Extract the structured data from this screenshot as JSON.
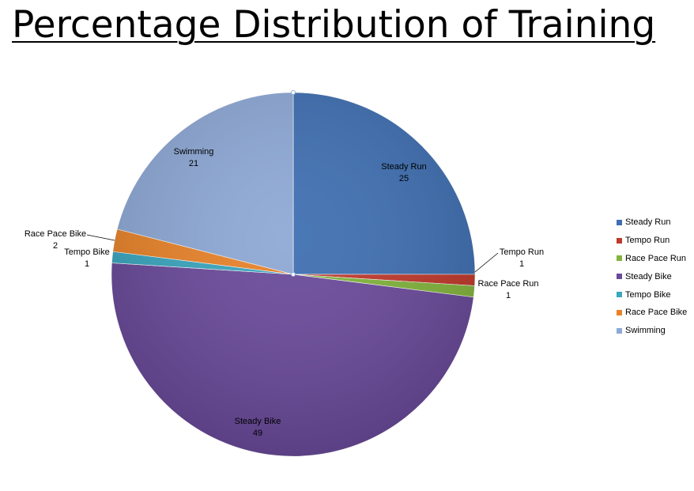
{
  "title": "Percentage Distribution of Training",
  "chart_data": {
    "type": "pie",
    "title": "Percentage Distribution of Training",
    "start_angle_deg": 0,
    "direction": "clockwise",
    "legend_position": "right",
    "slices": [
      {
        "label": "Steady Run",
        "value": 25,
        "color": "#3f6fb1"
      },
      {
        "label": "Tempo Run",
        "value": 1,
        "color": "#c0392b"
      },
      {
        "label": "Race Pace Run",
        "value": 1,
        "color": "#82b43c"
      },
      {
        "label": "Steady Bike",
        "value": 49,
        "color": "#6a4a9a"
      },
      {
        "label": "Tempo Bike",
        "value": 1,
        "color": "#3aa6bf"
      },
      {
        "label": "Race Pace Bike",
        "value": 2,
        "color": "#e8832a"
      },
      {
        "label": "Swimming",
        "value": 21,
        "color": "#8ea9d6"
      }
    ]
  }
}
